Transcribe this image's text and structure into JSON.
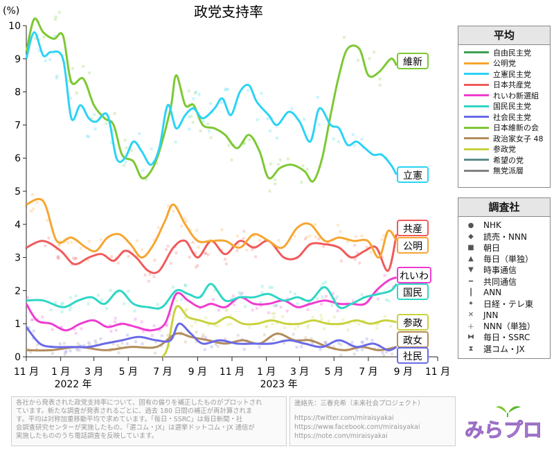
{
  "chart_data": {
    "type": "line",
    "title": "政党支持率",
    "ylabel": "(%)",
    "ylim": [
      0,
      10
    ],
    "yticks": [
      0,
      1,
      2,
      3,
      4,
      5,
      6,
      7,
      8,
      9,
      10
    ],
    "xlim": [
      "2021-11-01",
      "2023-11-01"
    ],
    "xticks": [
      {
        "date": "2021-11-01",
        "label": "11 月"
      },
      {
        "date": "2022-01-01",
        "label": "1 月"
      },
      {
        "date": "2022-03-01",
        "label": "3 月"
      },
      {
        "date": "2022-05-01",
        "label": "5 月"
      },
      {
        "date": "2022-07-01",
        "label": "7 月"
      },
      {
        "date": "2022-09-01",
        "label": "9 月"
      },
      {
        "date": "2022-11-01",
        "label": "11 月"
      },
      {
        "date": "2023-01-01",
        "label": "1 月"
      },
      {
        "date": "2023-03-01",
        "label": "3 月"
      },
      {
        "date": "2023-05-01",
        "label": "5 月"
      },
      {
        "date": "2023-07-01",
        "label": "7 月"
      },
      {
        "date": "2023-09-01",
        "label": "9 月"
      },
      {
        "date": "2023-11-01",
        "label": "11 月"
      }
    ],
    "year_labels": [
      {
        "date": "2022-01-01",
        "label": "2022 年"
      },
      {
        "date": "2023-01-01",
        "label": "2023 年"
      }
    ],
    "grid": false,
    "series": [
      {
        "name": "日本維新の会",
        "color": "#7cc832",
        "end_label": "維新",
        "x": [
          "2021-11-01",
          "2021-11-15",
          "2021-12-01",
          "2021-12-20",
          "2022-01-05",
          "2022-01-20",
          "2022-02-10",
          "2022-03-01",
          "2022-03-20",
          "2022-04-05",
          "2022-04-20",
          "2022-05-10",
          "2022-05-25",
          "2022-06-10",
          "2022-06-25",
          "2022-07-15",
          "2022-07-25",
          "2022-08-10",
          "2022-08-25",
          "2022-09-10",
          "2022-10-01",
          "2022-10-20",
          "2022-11-10",
          "2022-12-01",
          "2022-12-20",
          "2023-01-05",
          "2023-01-25",
          "2023-02-15",
          "2023-03-10",
          "2023-03-25",
          "2023-04-10",
          "2023-04-25",
          "2023-05-10",
          "2023-05-25",
          "2023-06-15",
          "2023-07-01",
          "2023-07-20",
          "2023-08-10",
          "2023-08-20"
        ],
        "y": [
          9.2,
          10.2,
          9.8,
          9.6,
          9.7,
          8.3,
          8.4,
          7.6,
          7.2,
          7.0,
          6.1,
          5.9,
          5.4,
          5.6,
          6.2,
          7.5,
          8.5,
          7.6,
          7.6,
          7.0,
          6.9,
          6.7,
          6.3,
          6.7,
          6.2,
          5.4,
          5.7,
          5.8,
          5.6,
          5.3,
          6.0,
          7.3,
          8.5,
          9.3,
          9.3,
          8.5,
          8.6,
          9.0,
          8.8
        ]
      },
      {
        "name": "立憲民主党",
        "color": "#2bd3f5",
        "end_label": "立憲",
        "x": [
          "2021-11-01",
          "2021-11-15",
          "2021-12-01",
          "2021-12-15",
          "2022-01-05",
          "2022-01-20",
          "2022-02-05",
          "2022-02-20",
          "2022-03-05",
          "2022-03-25",
          "2022-04-10",
          "2022-04-25",
          "2022-05-10",
          "2022-05-25",
          "2022-06-10",
          "2022-06-25",
          "2022-07-10",
          "2022-07-25",
          "2022-08-10",
          "2022-08-25",
          "2022-09-10",
          "2022-10-01",
          "2022-10-15",
          "2022-10-30",
          "2022-11-15",
          "2022-12-01",
          "2022-12-15",
          "2023-01-05",
          "2023-01-20",
          "2023-02-10",
          "2023-03-01",
          "2023-03-20",
          "2023-04-05",
          "2023-04-25",
          "2023-05-10",
          "2023-05-25",
          "2023-06-10",
          "2023-06-25",
          "2023-07-10",
          "2023-07-25",
          "2023-08-10",
          "2023-08-20"
        ],
        "y": [
          9.0,
          9.8,
          9.1,
          9.2,
          9.0,
          7.2,
          7.6,
          7.2,
          7.1,
          7.3,
          6.0,
          6.0,
          6.5,
          6.2,
          5.8,
          6.3,
          7.6,
          6.9,
          7.3,
          7.5,
          7.2,
          7.5,
          7.8,
          7.3,
          8.0,
          8.2,
          7.7,
          7.3,
          7.0,
          7.4,
          7.1,
          6.5,
          7.5,
          7.0,
          6.9,
          6.4,
          6.5,
          6.3,
          6.1,
          6.1,
          5.8,
          5.5
        ]
      },
      {
        "name": "日本共産党",
        "color": "#f05a5a",
        "end_label": "共産",
        "x": [
          "2021-11-01",
          "2021-12-01",
          "2022-01-01",
          "2022-01-25",
          "2022-02-20",
          "2022-03-15",
          "2022-04-05",
          "2022-04-25",
          "2022-05-15",
          "2022-06-05",
          "2022-06-25",
          "2022-07-20",
          "2022-08-10",
          "2022-09-01",
          "2022-09-25",
          "2022-10-20",
          "2022-11-15",
          "2022-12-10",
          "2023-01-05",
          "2023-02-01",
          "2023-02-25",
          "2023-03-20",
          "2023-04-15",
          "2023-05-10",
          "2023-06-01",
          "2023-06-25",
          "2023-07-15",
          "2023-08-05",
          "2023-08-20"
        ],
        "y": [
          3.3,
          3.5,
          3.2,
          2.8,
          3.0,
          3.1,
          2.9,
          3.2,
          3.0,
          2.6,
          2.6,
          3.3,
          3.5,
          3.0,
          3.5,
          3.1,
          3.5,
          3.3,
          3.5,
          3.0,
          3.0,
          3.4,
          3.4,
          3.3,
          3.0,
          3.2,
          3.3,
          2.6,
          3.7
        ]
      },
      {
        "name": "公明党",
        "color": "#f7a530",
        "end_label": "公明",
        "x": [
          "2021-11-01",
          "2021-12-01",
          "2021-12-25",
          "2022-01-20",
          "2022-02-15",
          "2022-03-05",
          "2022-03-25",
          "2022-04-15",
          "2022-05-05",
          "2022-05-25",
          "2022-06-15",
          "2022-07-05",
          "2022-07-20",
          "2022-08-10",
          "2022-09-01",
          "2022-09-25",
          "2022-10-20",
          "2022-11-15",
          "2022-12-10",
          "2023-01-05",
          "2023-01-30",
          "2023-02-25",
          "2023-03-20",
          "2023-04-15",
          "2023-05-10",
          "2023-06-05",
          "2023-06-30",
          "2023-07-20",
          "2023-08-05",
          "2023-08-20"
        ],
        "y": [
          4.6,
          4.7,
          3.5,
          3.6,
          3.3,
          3.2,
          3.6,
          3.7,
          3.4,
          3.0,
          3.4,
          4.1,
          4.6,
          4.0,
          3.5,
          3.5,
          3.5,
          3.3,
          3.7,
          3.5,
          3.3,
          3.9,
          4.0,
          3.5,
          3.6,
          3.5,
          3.5,
          3.0,
          3.8,
          3.5
        ]
      },
      {
        "name": "れいわ新選組",
        "color": "#ee3cd0",
        "end_label": "れいわ",
        "x": [
          "2021-11-01",
          "2021-11-20",
          "2021-12-15",
          "2022-01-10",
          "2022-02-05",
          "2022-03-01",
          "2022-03-25",
          "2022-04-20",
          "2022-05-15",
          "2022-06-10",
          "2022-07-05",
          "2022-07-25",
          "2022-08-15",
          "2022-09-05",
          "2022-09-25",
          "2022-10-20",
          "2022-11-15",
          "2022-12-10",
          "2023-01-05",
          "2023-02-01",
          "2023-02-25",
          "2023-03-20",
          "2023-04-15",
          "2023-05-10",
          "2023-06-01",
          "2023-06-25",
          "2023-07-15",
          "2023-08-05",
          "2023-08-20"
        ],
        "y": [
          1.6,
          1.1,
          1.0,
          0.8,
          1.0,
          1.1,
          0.9,
          1.0,
          0.9,
          0.8,
          1.0,
          1.9,
          1.7,
          1.5,
          1.6,
          1.5,
          1.8,
          1.6,
          1.6,
          1.7,
          1.5,
          1.6,
          1.7,
          1.6,
          1.6,
          1.6,
          2.0,
          2.3,
          2.4
        ]
      },
      {
        "name": "国民民主党",
        "color": "#2ed6c4",
        "end_label": "国民",
        "x": [
          "2021-11-01",
          "2021-12-01",
          "2022-01-05",
          "2022-02-01",
          "2022-02-25",
          "2022-03-20",
          "2022-04-15",
          "2022-05-10",
          "2022-06-05",
          "2022-06-30",
          "2022-07-25",
          "2022-08-15",
          "2022-09-05",
          "2022-09-25",
          "2022-10-20",
          "2022-11-15",
          "2022-12-10",
          "2023-01-05",
          "2023-02-01",
          "2023-02-25",
          "2023-03-20",
          "2023-04-15",
          "2023-05-10",
          "2023-06-01",
          "2023-06-25",
          "2023-07-20",
          "2023-08-10",
          "2023-08-20"
        ],
        "y": [
          1.7,
          1.7,
          1.5,
          1.7,
          1.8,
          1.6,
          2.0,
          1.6,
          1.5,
          1.5,
          2.0,
          1.9,
          1.8,
          2.2,
          1.7,
          1.8,
          1.8,
          1.9,
          1.7,
          1.8,
          1.7,
          2.1,
          1.5,
          1.6,
          1.8,
          1.9,
          2.0,
          2.2
        ]
      },
      {
        "name": "参政党",
        "color": "#c8d23c",
        "end_label": "参政",
        "x": [
          "2022-07-01",
          "2022-07-10",
          "2022-07-25",
          "2022-08-15",
          "2022-09-05",
          "2022-09-30",
          "2022-10-25",
          "2022-11-20",
          "2022-12-15",
          "2023-01-10",
          "2023-02-05",
          "2023-03-01",
          "2023-03-25",
          "2023-04-20",
          "2023-05-15",
          "2023-06-10",
          "2023-07-05",
          "2023-07-30",
          "2023-08-20"
        ],
        "y": [
          0.0,
          0.3,
          1.5,
          1.2,
          1.1,
          1.0,
          1.2,
          1.0,
          1.0,
          1.1,
          1.0,
          1.0,
          1.1,
          1.0,
          1.0,
          1.1,
          1.0,
          1.1,
          1.05
        ]
      },
      {
        "name": "政治家女子48",
        "color": "#b38c5a",
        "end_label": "政女",
        "x": [
          "2021-11-01",
          "2021-12-15",
          "2022-02-01",
          "2022-03-20",
          "2022-05-05",
          "2022-06-20",
          "2022-07-25",
          "2022-08-20",
          "2022-09-20",
          "2022-10-20",
          "2022-11-20",
          "2022-12-20",
          "2023-01-20",
          "2023-02-20",
          "2023-03-20",
          "2023-04-20",
          "2023-05-20",
          "2023-06-20",
          "2023-07-20",
          "2023-08-20"
        ],
        "y": [
          0.2,
          0.2,
          0.3,
          0.2,
          0.3,
          0.3,
          0.7,
          0.6,
          0.5,
          0.4,
          0.5,
          0.4,
          0.7,
          0.5,
          0.5,
          0.3,
          0.2,
          0.3,
          0.2,
          0.3
        ]
      },
      {
        "name": "社会民主党",
        "color": "#6a6ae8",
        "end_label": "社民",
        "x": [
          "2021-11-01",
          "2021-11-25",
          "2021-12-20",
          "2022-01-20",
          "2022-02-20",
          "2022-03-20",
          "2022-04-20",
          "2022-05-20",
          "2022-06-20",
          "2022-07-15",
          "2022-07-30",
          "2022-08-20",
          "2022-09-10",
          "2022-10-10",
          "2022-11-10",
          "2022-12-10",
          "2023-01-10",
          "2023-02-10",
          "2023-03-10",
          "2023-04-10",
          "2023-05-10",
          "2023-06-10",
          "2023-07-10",
          "2023-08-05",
          "2023-08-20"
        ],
        "y": [
          0.9,
          0.4,
          0.3,
          0.3,
          0.3,
          0.4,
          0.5,
          0.6,
          0.5,
          0.5,
          1.0,
          0.7,
          0.4,
          0.5,
          0.4,
          0.4,
          0.4,
          0.5,
          0.4,
          0.3,
          0.5,
          0.3,
          0.4,
          0.2,
          0.3
        ]
      }
    ],
    "legend_average": {
      "title": "平均",
      "entries": [
        {
          "name": "自由民主党",
          "color": "#3c9f50"
        },
        {
          "name": "公明党",
          "color": "#f7a530"
        },
        {
          "name": "立憲民主党",
          "color": "#2bd3f5"
        },
        {
          "name": "日本共産党",
          "color": "#f05a5a"
        },
        {
          "name": "れいわ新選組",
          "color": "#ee3cd0"
        },
        {
          "name": "国民民主党",
          "color": "#2ed6c4"
        },
        {
          "name": "社会民主党",
          "color": "#6a6ae8"
        },
        {
          "name": "日本維新の会",
          "color": "#7cc832"
        },
        {
          "name": "政治家女子 48",
          "color": "#b38c5a"
        },
        {
          "name": "参政党",
          "color": "#c8d23c"
        },
        {
          "name": "希望の党",
          "color": "#5a8c8c"
        },
        {
          "name": "無党派層",
          "color": "#808080"
        }
      ]
    },
    "legend_pollsters": {
      "title": "調査社",
      "entries": [
        {
          "name": "NHK",
          "marker": "●"
        },
        {
          "name": "読売・NNN",
          "marker": "◆"
        },
        {
          "name": "朝日",
          "marker": "■"
        },
        {
          "name": "毎日（単独）",
          "marker": "▲"
        },
        {
          "name": "時事通信",
          "marker": "▼"
        },
        {
          "name": "共同通信",
          "marker": "━"
        },
        {
          "name": "ANN",
          "marker": "┃"
        },
        {
          "name": "日経・テレ東",
          "marker": "✦"
        },
        {
          "name": "JNN",
          "marker": "✕"
        },
        {
          "name": "NNN（単独）",
          "marker": "＋"
        },
        {
          "name": "毎日・SSRC",
          "marker": "⧓"
        },
        {
          "name": "選コム・JX",
          "marker": "⧗"
        }
      ]
    }
  },
  "notes": {
    "lines": [
      "各社から発表された政党支持率について、固有の偏りを補正したものがプロットされ",
      "ています。新たな調査が発表されるごとに、過去 180 日間の補正が再計算されま",
      "す。平均は対称加重移動平均で求めています。「毎日・SSRC」は毎日新聞・社",
      "会調査研究センターが実施したもの、「選コム・JX」は選挙ドットコム・JX 通信が",
      "実施したもののうち電話調査を反映しています。"
    ]
  },
  "contact": {
    "heading": "連絡先：三春充希（未来社会プロジェクト）",
    "links": [
      "https://twitter.com/miraisyakai",
      "https://www.facebook.com/miraisyakai",
      "https://note.com/miraisyakai"
    ]
  },
  "logo": {
    "text": "みらプロ"
  }
}
